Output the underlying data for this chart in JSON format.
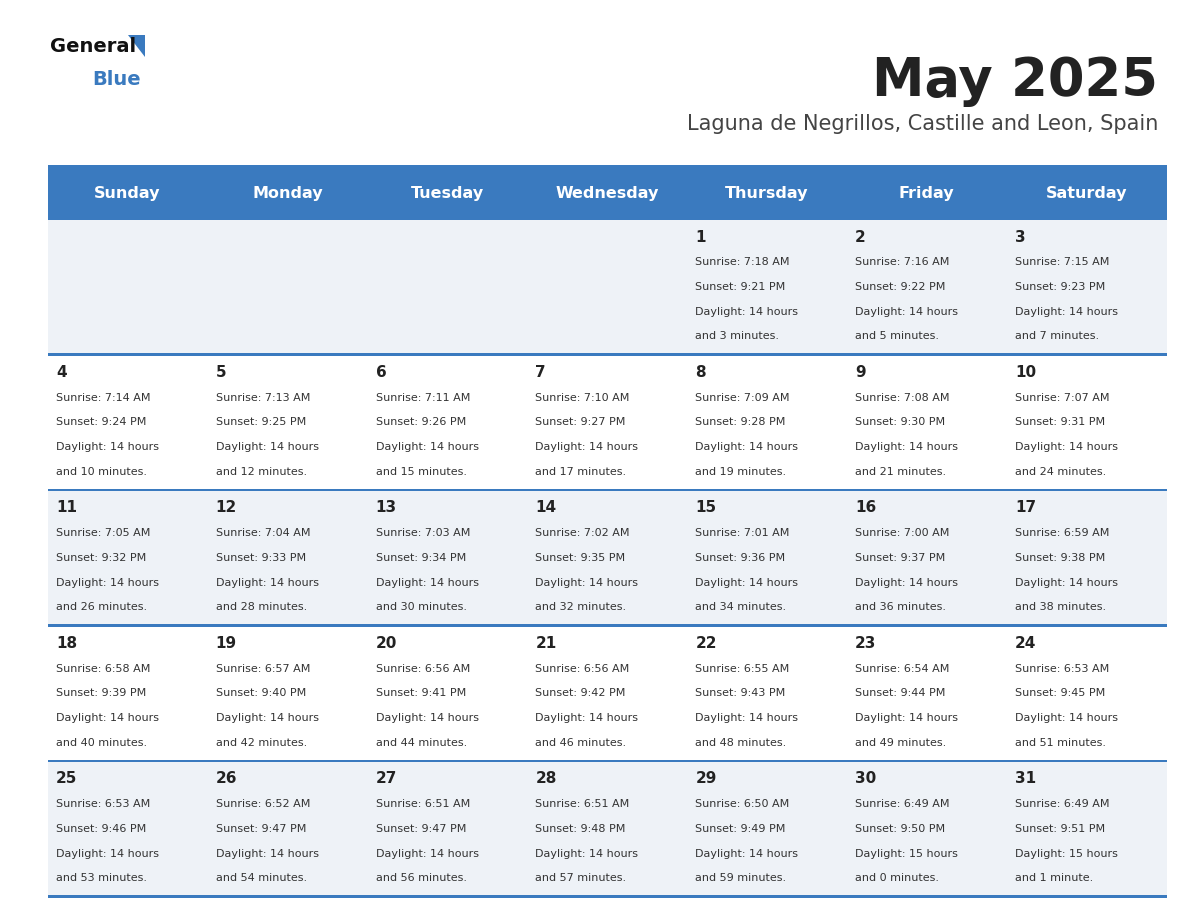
{
  "title": "May 2025",
  "subtitle": "Laguna de Negrillos, Castille and Leon, Spain",
  "days_of_week": [
    "Sunday",
    "Monday",
    "Tuesday",
    "Wednesday",
    "Thursday",
    "Friday",
    "Saturday"
  ],
  "header_bg": "#3a7abf",
  "header_text": "#ffffff",
  "row_bg_odd": "#ffffff",
  "row_bg_even": "#eef2f7",
  "divider_color": "#3a7abf",
  "day_number_color": "#222222",
  "cell_text_color": "#333333",
  "title_color": "#222222",
  "subtitle_color": "#444444",
  "weeks": [
    [
      {
        "day": "",
        "sunrise": "",
        "sunset": "",
        "daylight": ""
      },
      {
        "day": "",
        "sunrise": "",
        "sunset": "",
        "daylight": ""
      },
      {
        "day": "",
        "sunrise": "",
        "sunset": "",
        "daylight": ""
      },
      {
        "day": "",
        "sunrise": "",
        "sunset": "",
        "daylight": ""
      },
      {
        "day": "1",
        "sunrise": "7:18 AM",
        "sunset": "9:21 PM",
        "daylight": "14 hours\nand 3 minutes."
      },
      {
        "day": "2",
        "sunrise": "7:16 AM",
        "sunset": "9:22 PM",
        "daylight": "14 hours\nand 5 minutes."
      },
      {
        "day": "3",
        "sunrise": "7:15 AM",
        "sunset": "9:23 PM",
        "daylight": "14 hours\nand 7 minutes."
      }
    ],
    [
      {
        "day": "4",
        "sunrise": "7:14 AM",
        "sunset": "9:24 PM",
        "daylight": "14 hours\nand 10 minutes."
      },
      {
        "day": "5",
        "sunrise": "7:13 AM",
        "sunset": "9:25 PM",
        "daylight": "14 hours\nand 12 minutes."
      },
      {
        "day": "6",
        "sunrise": "7:11 AM",
        "sunset": "9:26 PM",
        "daylight": "14 hours\nand 15 minutes."
      },
      {
        "day": "7",
        "sunrise": "7:10 AM",
        "sunset": "9:27 PM",
        "daylight": "14 hours\nand 17 minutes."
      },
      {
        "day": "8",
        "sunrise": "7:09 AM",
        "sunset": "9:28 PM",
        "daylight": "14 hours\nand 19 minutes."
      },
      {
        "day": "9",
        "sunrise": "7:08 AM",
        "sunset": "9:30 PM",
        "daylight": "14 hours\nand 21 minutes."
      },
      {
        "day": "10",
        "sunrise": "7:07 AM",
        "sunset": "9:31 PM",
        "daylight": "14 hours\nand 24 minutes."
      }
    ],
    [
      {
        "day": "11",
        "sunrise": "7:05 AM",
        "sunset": "9:32 PM",
        "daylight": "14 hours\nand 26 minutes."
      },
      {
        "day": "12",
        "sunrise": "7:04 AM",
        "sunset": "9:33 PM",
        "daylight": "14 hours\nand 28 minutes."
      },
      {
        "day": "13",
        "sunrise": "7:03 AM",
        "sunset": "9:34 PM",
        "daylight": "14 hours\nand 30 minutes."
      },
      {
        "day": "14",
        "sunrise": "7:02 AM",
        "sunset": "9:35 PM",
        "daylight": "14 hours\nand 32 minutes."
      },
      {
        "day": "15",
        "sunrise": "7:01 AM",
        "sunset": "9:36 PM",
        "daylight": "14 hours\nand 34 minutes."
      },
      {
        "day": "16",
        "sunrise": "7:00 AM",
        "sunset": "9:37 PM",
        "daylight": "14 hours\nand 36 minutes."
      },
      {
        "day": "17",
        "sunrise": "6:59 AM",
        "sunset": "9:38 PM",
        "daylight": "14 hours\nand 38 minutes."
      }
    ],
    [
      {
        "day": "18",
        "sunrise": "6:58 AM",
        "sunset": "9:39 PM",
        "daylight": "14 hours\nand 40 minutes."
      },
      {
        "day": "19",
        "sunrise": "6:57 AM",
        "sunset": "9:40 PM",
        "daylight": "14 hours\nand 42 minutes."
      },
      {
        "day": "20",
        "sunrise": "6:56 AM",
        "sunset": "9:41 PM",
        "daylight": "14 hours\nand 44 minutes."
      },
      {
        "day": "21",
        "sunrise": "6:56 AM",
        "sunset": "9:42 PM",
        "daylight": "14 hours\nand 46 minutes."
      },
      {
        "day": "22",
        "sunrise": "6:55 AM",
        "sunset": "9:43 PM",
        "daylight": "14 hours\nand 48 minutes."
      },
      {
        "day": "23",
        "sunrise": "6:54 AM",
        "sunset": "9:44 PM",
        "daylight": "14 hours\nand 49 minutes."
      },
      {
        "day": "24",
        "sunrise": "6:53 AM",
        "sunset": "9:45 PM",
        "daylight": "14 hours\nand 51 minutes."
      }
    ],
    [
      {
        "day": "25",
        "sunrise": "6:53 AM",
        "sunset": "9:46 PM",
        "daylight": "14 hours\nand 53 minutes."
      },
      {
        "day": "26",
        "sunrise": "6:52 AM",
        "sunset": "9:47 PM",
        "daylight": "14 hours\nand 54 minutes."
      },
      {
        "day": "27",
        "sunrise": "6:51 AM",
        "sunset": "9:47 PM",
        "daylight": "14 hours\nand 56 minutes."
      },
      {
        "day": "28",
        "sunrise": "6:51 AM",
        "sunset": "9:48 PM",
        "daylight": "14 hours\nand 57 minutes."
      },
      {
        "day": "29",
        "sunrise": "6:50 AM",
        "sunset": "9:49 PM",
        "daylight": "14 hours\nand 59 minutes."
      },
      {
        "day": "30",
        "sunrise": "6:49 AM",
        "sunset": "9:50 PM",
        "daylight": "15 hours\nand 0 minutes."
      },
      {
        "day": "31",
        "sunrise": "6:49 AM",
        "sunset": "9:51 PM",
        "daylight": "15 hours\nand 1 minute."
      }
    ]
  ]
}
